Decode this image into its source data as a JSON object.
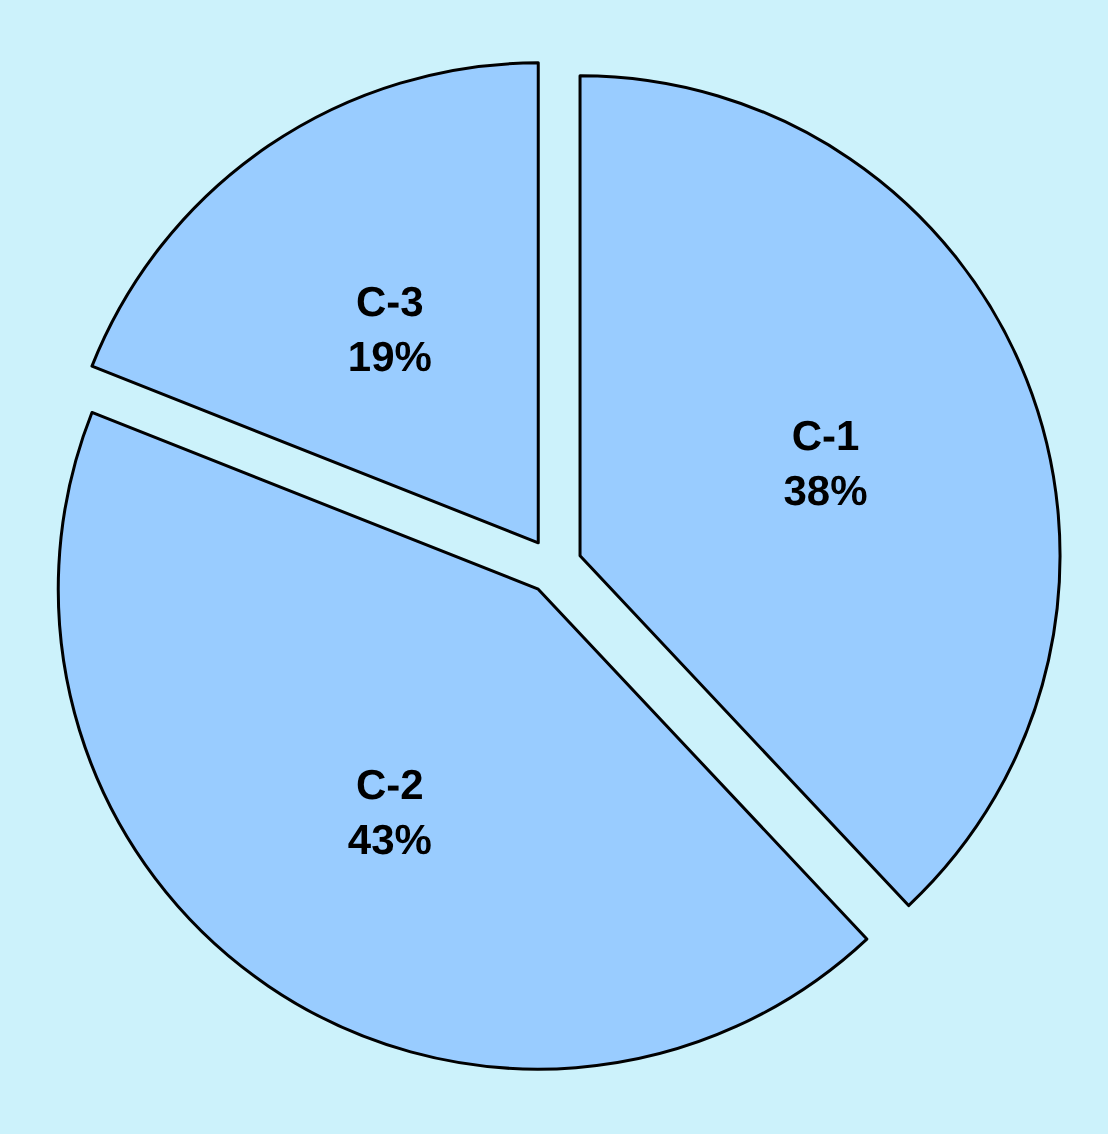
{
  "chart_data": {
    "type": "pie",
    "categories": [
      "C-1",
      "C-2",
      "C-3"
    ],
    "values": [
      38,
      43,
      19
    ],
    "value_labels": [
      "38%",
      "43%",
      "19%"
    ],
    "colors": [
      "#99ccff",
      "#99ccff",
      "#99ccff"
    ]
  }
}
